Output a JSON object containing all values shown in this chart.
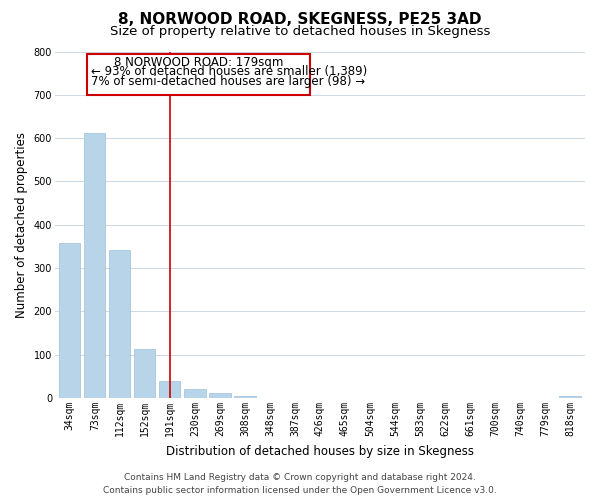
{
  "title": "8, NORWOOD ROAD, SKEGNESS, PE25 3AD",
  "subtitle": "Size of property relative to detached houses in Skegness",
  "xlabel": "Distribution of detached houses by size in Skegness",
  "ylabel": "Number of detached properties",
  "bar_labels": [
    "34sqm",
    "73sqm",
    "112sqm",
    "152sqm",
    "191sqm",
    "230sqm",
    "269sqm",
    "308sqm",
    "348sqm",
    "387sqm",
    "426sqm",
    "465sqm",
    "504sqm",
    "544sqm",
    "583sqm",
    "622sqm",
    "661sqm",
    "700sqm",
    "740sqm",
    "779sqm",
    "818sqm"
  ],
  "bar_values": [
    358,
    611,
    342,
    114,
    40,
    22,
    13,
    5,
    0,
    0,
    0,
    0,
    0,
    0,
    0,
    0,
    0,
    0,
    0,
    0,
    5
  ],
  "bar_color": "#b8d4e8",
  "bar_edge_color": "#a0c0dc",
  "vline_x": 4,
  "vline_color": "#cc0000",
  "ylim": [
    0,
    800
  ],
  "yticks": [
    0,
    100,
    200,
    300,
    400,
    500,
    600,
    700,
    800
  ],
  "annotation_line1": "8 NORWOOD ROAD: 179sqm",
  "annotation_line2": "← 93% of detached houses are smaller (1,389)",
  "annotation_line3": "7% of semi-detached houses are larger (98) →",
  "footer_line1": "Contains HM Land Registry data © Crown copyright and database right 2024.",
  "footer_line2": "Contains public sector information licensed under the Open Government Licence v3.0.",
  "background_color": "#ffffff",
  "grid_color": "#ccd8e4",
  "title_fontsize": 11,
  "subtitle_fontsize": 9.5,
  "axis_label_fontsize": 8.5,
  "tick_fontsize": 7,
  "annotation_fontsize": 8.5,
  "footer_fontsize": 6.5
}
